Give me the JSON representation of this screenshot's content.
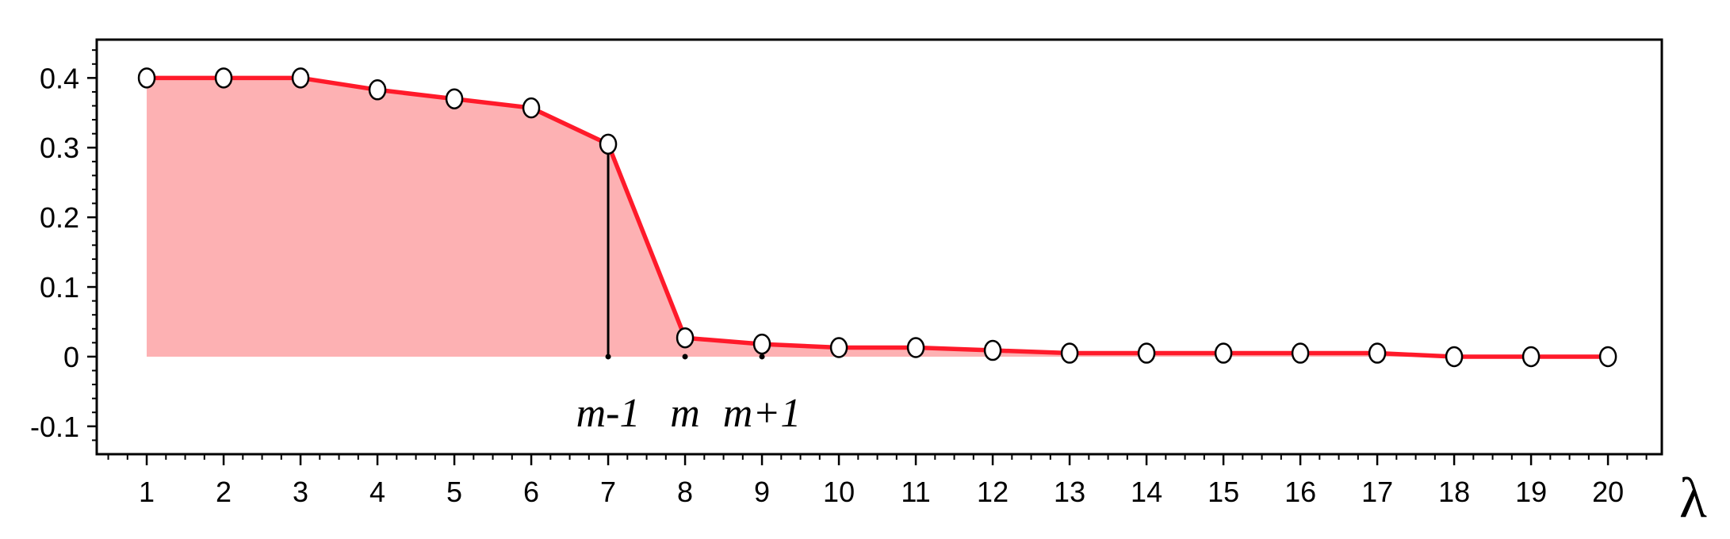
{
  "chart_data": {
    "type": "line",
    "title": "",
    "xlabel": "λ",
    "ylabel": "",
    "x": [
      1,
      2,
      3,
      4,
      5,
      6,
      7,
      8,
      9,
      10,
      11,
      12,
      13,
      14,
      15,
      16,
      17,
      18,
      19,
      20
    ],
    "series": [
      {
        "values": [
          0.4,
          0.4,
          0.4,
          0.383,
          0.37,
          0.357,
          0.305,
          0.027,
          0.018,
          0.013,
          0.013,
          0.009,
          0.005,
          0.005,
          0.005,
          0.005,
          0.005,
          0.0,
          0.0,
          0.0
        ],
        "color": "#ff1a2a",
        "fill": "#fdb1b3",
        "fill_range": [
          1,
          8
        ]
      }
    ],
    "xlim": [
      0.35,
      20.7
    ],
    "ylim": [
      -0.14,
      0.455
    ],
    "yticks": [
      -0.1,
      0,
      0.1,
      0.2,
      0.3,
      0.4
    ],
    "ytick_labels": [
      "-0.1",
      "0",
      "0.1",
      "0.2",
      "0.3",
      "0.4"
    ],
    "xticks": [
      1,
      2,
      3,
      4,
      5,
      6,
      7,
      8,
      9,
      10,
      11,
      12,
      13,
      14,
      15,
      16,
      17,
      18,
      19,
      20
    ],
    "xtick_labels": [
      "1",
      "2",
      "3",
      "4",
      "5",
      "6",
      "7",
      "8",
      "9",
      "10",
      "11",
      "12",
      "13",
      "14",
      "15",
      "16",
      "17",
      "18",
      "19",
      "20"
    ],
    "annotations": [
      {
        "text": "m-1",
        "x": 7
      },
      {
        "text": "m",
        "x": 8
      },
      {
        "text": "m+1",
        "x": 9
      }
    ],
    "vline_at": 7,
    "grid": false,
    "legend": "none"
  }
}
